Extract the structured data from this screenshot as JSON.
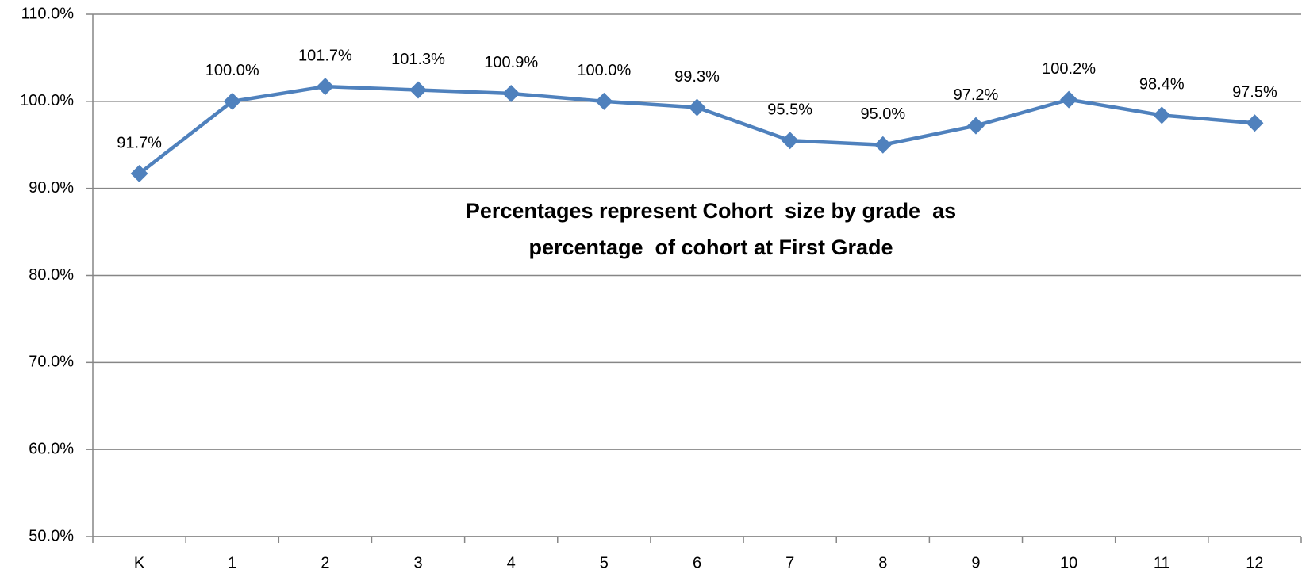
{
  "chart_data": {
    "type": "line",
    "categories": [
      "K",
      "1",
      "2",
      "3",
      "4",
      "5",
      "6",
      "7",
      "8",
      "9",
      "10",
      "11",
      "12"
    ],
    "series": [
      {
        "name": "Cohort size",
        "color": "#4f81bd",
        "values": [
          91.7,
          100.0,
          101.7,
          101.3,
          100.9,
          100.0,
          99.3,
          95.5,
          95.0,
          97.2,
          100.2,
          98.4,
          97.5
        ],
        "value_labels": [
          "91.7%",
          "100.0%",
          "101.7%",
          "101.3%",
          "100.9%",
          "100.0%",
          "99.3%",
          "95.5%",
          "95.0%",
          "97.2%",
          "100.2%",
          "98.4%",
          "97.5%"
        ]
      }
    ],
    "annotation": [
      "Percentages represent Cohort  size by grade  as",
      "percentage  of cohort at First Grade"
    ],
    "ylim": [
      50,
      110
    ],
    "yticks": [
      {
        "value": 50,
        "label": "50.0%"
      },
      {
        "value": 60,
        "label": "60.0%"
      },
      {
        "value": 70,
        "label": "70.0%"
      },
      {
        "value": 80,
        "label": "80.0%"
      },
      {
        "value": 90,
        "label": "90.0%"
      },
      {
        "value": 100,
        "label": "100.0%"
      },
      {
        "value": 110,
        "label": "110.0%"
      }
    ],
    "grid": true
  }
}
